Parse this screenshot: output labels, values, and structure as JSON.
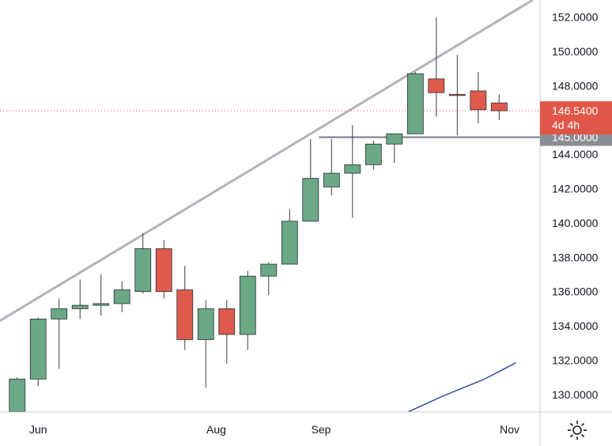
{
  "chart_data": {
    "type": "candlestick",
    "x_tick_labels": [
      {
        "label": "Jun",
        "index": 1
      },
      {
        "label": "Aug",
        "index": 9.5
      },
      {
        "label": "Sep",
        "index": 14.5
      },
      {
        "label": "Nov",
        "index": 23.5
      }
    ],
    "y_ticks": [
      130,
      132,
      134,
      136,
      138,
      140,
      142,
      144,
      148,
      150,
      152
    ],
    "y_tick_decimals": 4,
    "ylim": [
      128.98,
      153.0
    ],
    "x_range": [
      -0.82,
      24.95
    ],
    "candles": [
      {
        "o": 129.0,
        "h": 131.0,
        "l": 128.0,
        "c": 130.9
      },
      {
        "o": 130.9,
        "h": 134.5,
        "l": 130.5,
        "c": 134.4
      },
      {
        "o": 134.4,
        "h": 135.6,
        "l": 131.5,
        "c": 135.0
      },
      {
        "o": 135.0,
        "h": 136.7,
        "l": 134.4,
        "c": 135.2
      },
      {
        "o": 135.2,
        "h": 137.0,
        "l": 134.6,
        "c": 135.3
      },
      {
        "o": 135.3,
        "h": 136.6,
        "l": 134.8,
        "c": 136.1
      },
      {
        "o": 136.0,
        "h": 139.4,
        "l": 135.9,
        "c": 138.5
      },
      {
        "o": 138.5,
        "h": 139.0,
        "l": 135.6,
        "c": 136.0
      },
      {
        "o": 136.1,
        "h": 137.5,
        "l": 132.6,
        "c": 133.2
      },
      {
        "o": 133.2,
        "h": 135.5,
        "l": 130.4,
        "c": 135.0
      },
      {
        "o": 135.0,
        "h": 135.5,
        "l": 131.8,
        "c": 133.5
      },
      {
        "o": 133.5,
        "h": 137.2,
        "l": 132.6,
        "c": 136.9
      },
      {
        "o": 136.9,
        "h": 137.7,
        "l": 135.8,
        "c": 137.6
      },
      {
        "o": 137.6,
        "h": 140.8,
        "l": 137.6,
        "c": 140.1
      },
      {
        "o": 140.1,
        "h": 144.9,
        "l": 140.1,
        "c": 142.6
      },
      {
        "o": 142.1,
        "h": 144.9,
        "l": 141.6,
        "c": 142.9
      },
      {
        "o": 142.9,
        "h": 145.7,
        "l": 140.3,
        "c": 143.4
      },
      {
        "o": 143.4,
        "h": 144.8,
        "l": 143.1,
        "c": 144.6
      },
      {
        "o": 144.6,
        "h": 145.2,
        "l": 143.5,
        "c": 145.2
      },
      {
        "o": 145.2,
        "h": 148.8,
        "l": 145.2,
        "c": 148.7
      },
      {
        "o": 148.4,
        "h": 152.0,
        "l": 146.2,
        "c": 147.6
      },
      {
        "o": 147.5,
        "h": 149.8,
        "l": 145.1,
        "c": 147.45
      },
      {
        "o": 147.7,
        "h": 148.8,
        "l": 145.8,
        "c": 146.6
      },
      {
        "o": 147.0,
        "h": 147.5,
        "l": 146.0,
        "c": 146.54
      }
    ],
    "trendlines": [
      {
        "kind": "rising",
        "from": {
          "index": -0.82,
          "value": 134.3
        },
        "to": {
          "index": 24.6,
          "value": 153.0
        }
      },
      {
        "kind": "horizontal",
        "from": {
          "index": 14.4,
          "value": 145.0
        },
        "to": {
          "index": 24.95,
          "value": 145.0
        }
      }
    ],
    "moving_average": [
      {
        "index": 18.65,
        "value": 128.98
      },
      {
        "index": 20.3,
        "value": 129.9
      },
      {
        "index": 22.3,
        "value": 130.9
      },
      {
        "index": 23.8,
        "value": 131.85
      }
    ],
    "last_price": {
      "value": 146.54,
      "label": "146.5400",
      "countdown": "4d 4h"
    },
    "level_label": {
      "value": 145.0,
      "label": "145.0000"
    },
    "colors": {
      "up": "#6aa886",
      "down": "#de5a4c",
      "trendline": "#b3b2bb",
      "horizontal": "#787b86",
      "moving_average": "#2341a0",
      "last_price_bg": "#e0574a",
      "level_bg": "#8a8d94",
      "price_line": "#e0574a",
      "axis_text": "#131722"
    }
  }
}
